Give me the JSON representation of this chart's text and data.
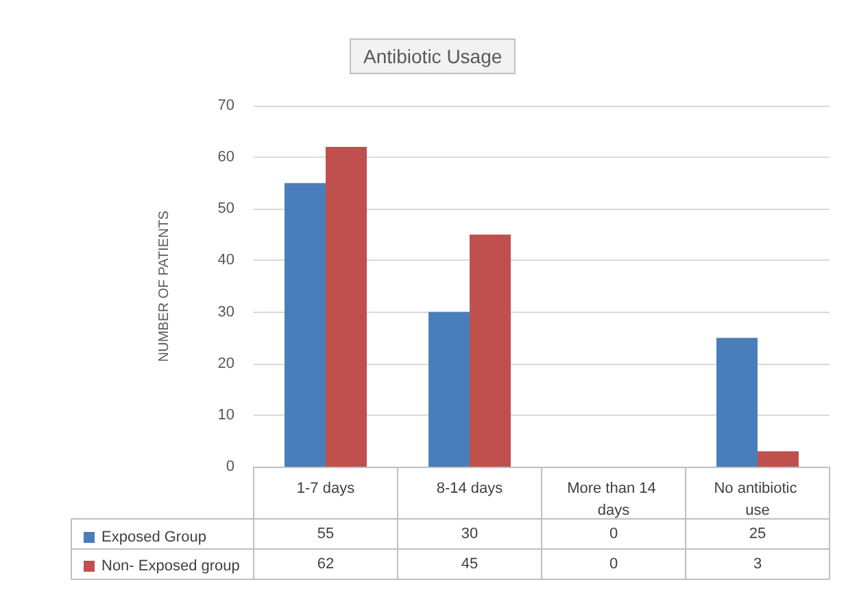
{
  "chart_data": {
    "type": "bar",
    "title": "Antibiotic Usage",
    "ylabel": "NUMBER OF PATIENTS",
    "categories": [
      "1-7 days",
      "8-14 days",
      "More than 14 days",
      "No antibiotic use"
    ],
    "series": [
      {
        "name": "Exposed Group",
        "color": "#4a7ebb",
        "values": [
          55,
          30,
          0,
          25
        ]
      },
      {
        "name": "Non- Exposed group",
        "color": "#c0504d",
        "values": [
          62,
          45,
          0,
          3
        ]
      }
    ],
    "ylim": [
      0,
      70
    ],
    "yticks": [
      0,
      10,
      20,
      30,
      40,
      50,
      60,
      70
    ],
    "grid": "y",
    "legend": "bottom left",
    "data_labels": true
  }
}
